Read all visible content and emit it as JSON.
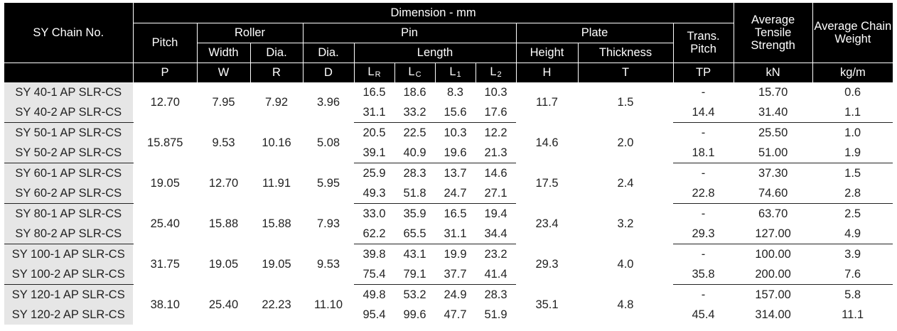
{
  "header": {
    "chain_no": "SY Chain No.",
    "dimension": "Dimension - mm",
    "pitch": "Pitch",
    "roller": "Roller",
    "pin": "Pin",
    "plate": "Plate",
    "trans_pitch": "Trans. Pitch",
    "avg_tensile": "Average Tensile Strength",
    "avg_weight": "Average Chain Weight",
    "roller_width": "Width",
    "roller_dia": "Dia.",
    "pin_dia": "Dia.",
    "pin_length": "Length",
    "plate_height": "Height",
    "plate_thickness": "Thickness"
  },
  "symbols": {
    "P": "P",
    "W": "W",
    "R": "R",
    "D": "D",
    "LR": "L",
    "LR_sub": "R",
    "LC": "L",
    "LC_sub": "C",
    "L1": "L",
    "L1_sub": "1",
    "L2": "L",
    "L2_sub": "2",
    "H": "H",
    "T": "T",
    "TP": "TP",
    "kN": "kN",
    "kgm": "kg/m"
  },
  "groups": [
    {
      "pitch": "12.70",
      "width": "7.95",
      "roller_dia": "7.92",
      "pin_dia": "3.96",
      "height": "11.7",
      "thickness": "1.5",
      "rows": [
        {
          "name": "SY 40-1 AP SLR-CS",
          "LR": "16.5",
          "LC": "18.6",
          "L1": "8.3",
          "L2": "10.3",
          "TP": "-",
          "kN": "15.70",
          "kgm": "0.6"
        },
        {
          "name": "SY 40-2 AP SLR-CS",
          "LR": "31.1",
          "LC": "33.2",
          "L1": "15.6",
          "L2": "17.6",
          "TP": "14.4",
          "kN": "31.40",
          "kgm": "1.1"
        }
      ]
    },
    {
      "pitch": "15.875",
      "width": "9.53",
      "roller_dia": "10.16",
      "pin_dia": "5.08",
      "height": "14.6",
      "thickness": "2.0",
      "rows": [
        {
          "name": "SY 50-1 AP SLR-CS",
          "LR": "20.5",
          "LC": "22.5",
          "L1": "10.3",
          "L2": "12.2",
          "TP": "-",
          "kN": "25.50",
          "kgm": "1.0"
        },
        {
          "name": "SY 50-2 AP SLR-CS",
          "LR": "39.1",
          "LC": "40.9",
          "L1": "19.6",
          "L2": "21.3",
          "TP": "18.1",
          "kN": "51.00",
          "kgm": "1.9"
        }
      ]
    },
    {
      "pitch": "19.05",
      "width": "12.70",
      "roller_dia": "11.91",
      "pin_dia": "5.95",
      "height": "17.5",
      "thickness": "2.4",
      "rows": [
        {
          "name": "SY 60-1 AP SLR-CS",
          "LR": "25.9",
          "LC": "28.3",
          "L1": "13.7",
          "L2": "14.6",
          "TP": "-",
          "kN": "37.30",
          "kgm": "1.5"
        },
        {
          "name": "SY 60-2 AP SLR-CS",
          "LR": "49.3",
          "LC": "51.8",
          "L1": "24.7",
          "L2": "27.1",
          "TP": "22.8",
          "kN": "74.60",
          "kgm": "2.8"
        }
      ]
    },
    {
      "pitch": "25.40",
      "width": "15.88",
      "roller_dia": "15.88",
      "pin_dia": "7.93",
      "height": "23.4",
      "thickness": "3.2",
      "rows": [
        {
          "name": "SY 80-1 AP SLR-CS",
          "LR": "33.0",
          "LC": "35.9",
          "L1": "16.5",
          "L2": "19.4",
          "TP": "-",
          "kN": "63.70",
          "kgm": "2.5"
        },
        {
          "name": "SY 80-2 AP SLR-CS",
          "LR": "62.2",
          "LC": "65.5",
          "L1": "31.1",
          "L2": "34.4",
          "TP": "29.3",
          "kN": "127.00",
          "kgm": "4.9"
        }
      ]
    },
    {
      "pitch": "31.75",
      "width": "19.05",
      "roller_dia": "19.05",
      "pin_dia": "9.53",
      "height": "29.3",
      "thickness": "4.0",
      "rows": [
        {
          "name": "SY 100-1 AP SLR-CS",
          "LR": "39.8",
          "LC": "43.1",
          "L1": "19.9",
          "L2": "23.2",
          "TP": "-",
          "kN": "100.00",
          "kgm": "3.9"
        },
        {
          "name": "SY 100-2 AP SLR-CS",
          "LR": "75.4",
          "LC": "79.1",
          "L1": "37.7",
          "L2": "41.4",
          "TP": "35.8",
          "kN": "200.00",
          "kgm": "7.6"
        }
      ]
    },
    {
      "pitch": "38.10",
      "width": "25.40",
      "roller_dia": "22.23",
      "pin_dia": "11.10",
      "height": "35.1",
      "thickness": "4.8",
      "rows": [
        {
          "name": "SY 120-1 AP SLR-CS",
          "LR": "49.8",
          "LC": "53.2",
          "L1": "24.9",
          "L2": "28.3",
          "TP": "-",
          "kN": "157.00",
          "kgm": "5.8"
        },
        {
          "name": "SY 120-2 AP SLR-CS",
          "LR": "95.4",
          "LC": "99.6",
          "L1": "47.7",
          "L2": "51.9",
          "TP": "45.4",
          "kN": "314.00",
          "kgm": "11.1"
        }
      ]
    }
  ]
}
